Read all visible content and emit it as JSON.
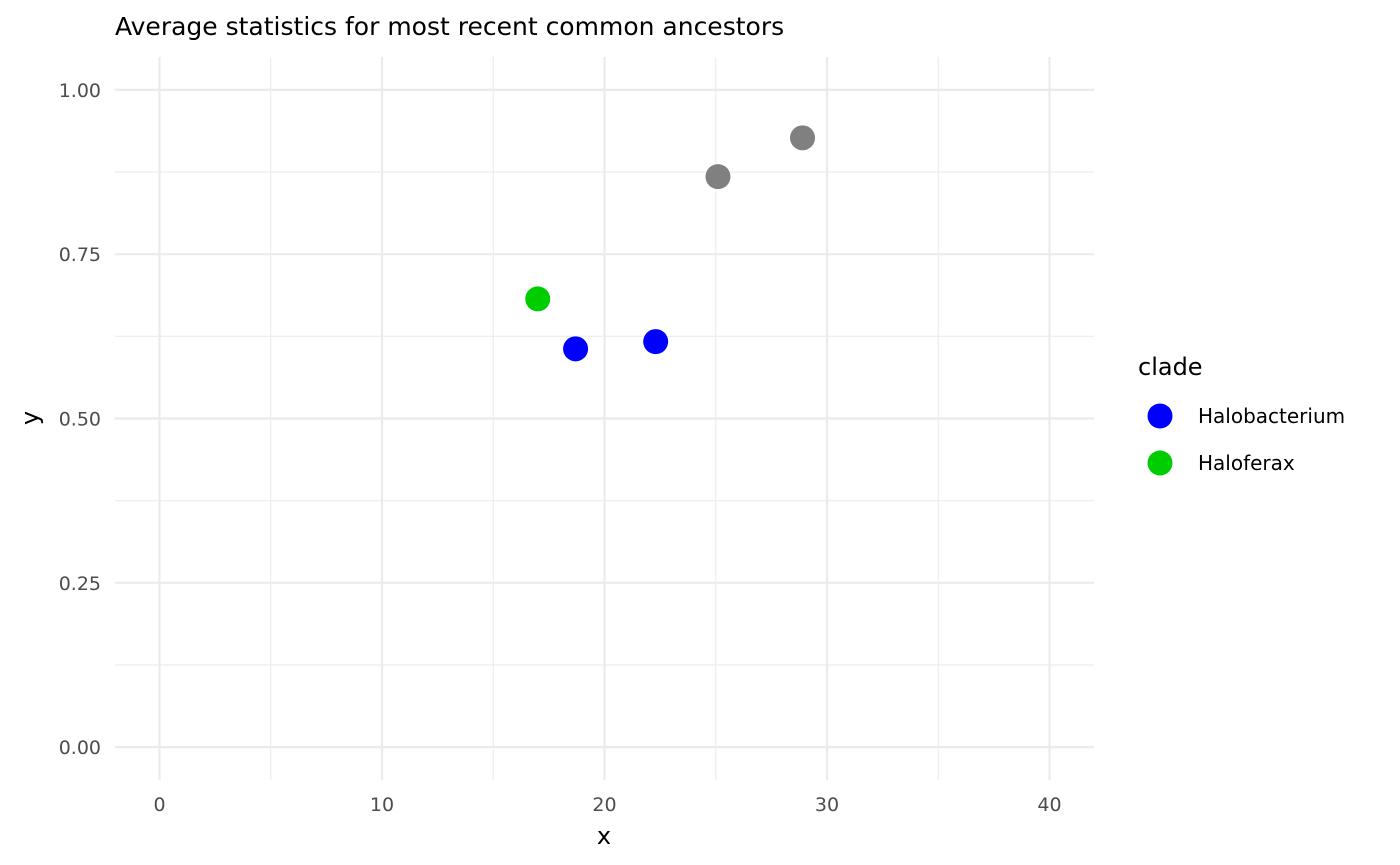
{
  "chart_data": {
    "type": "scatter",
    "title": "Average statistics for most recent common ancestors",
    "xlabel": "x",
    "ylabel": "y",
    "xlim": [
      -2,
      42
    ],
    "ylim": [
      -0.05,
      1.05
    ],
    "x_ticks": [
      0,
      10,
      20,
      30,
      40
    ],
    "x_tick_labels": [
      "0",
      "10",
      "20",
      "30",
      "40"
    ],
    "y_ticks": [
      0,
      0.25,
      0.5,
      0.75,
      1.0
    ],
    "y_tick_labels": [
      "0.00",
      "0.25",
      "0.50",
      "0.75",
      "1.00"
    ],
    "x_minor_ticks": [
      5,
      15,
      25,
      35
    ],
    "y_minor_ticks": [
      0.125,
      0.375,
      0.625,
      0.875
    ],
    "grid": true,
    "legend": {
      "title": "clade",
      "placement": "right",
      "entries": [
        {
          "label": "Halobacterium",
          "color": "#0000ff"
        },
        {
          "label": "Haloferax",
          "color": "#00cd00"
        }
      ]
    },
    "points": [
      {
        "x": 17.0,
        "y": 0.682,
        "color": "#00cd00",
        "clade": "Haloferax"
      },
      {
        "x": 18.7,
        "y": 0.606,
        "color": "#0000ff",
        "clade": "Halobacterium"
      },
      {
        "x": 22.3,
        "y": 0.617,
        "color": "#0000ff",
        "clade": "Halobacterium"
      },
      {
        "x": 25.1,
        "y": 0.868,
        "color": "#808080",
        "clade": ""
      },
      {
        "x": 28.9,
        "y": 0.927,
        "color": "#808080",
        "clade": ""
      }
    ]
  }
}
